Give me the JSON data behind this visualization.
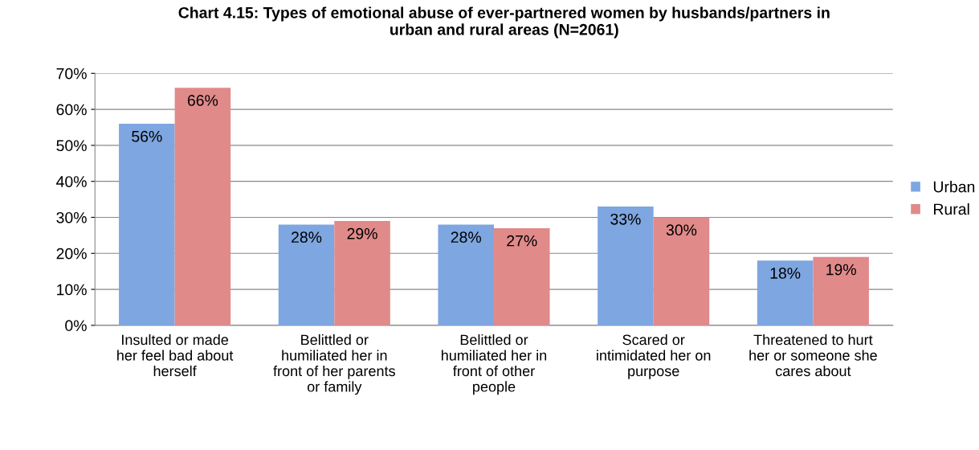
{
  "chart_data": {
    "type": "bar",
    "title": "Chart 4.15: Types of emotional abuse of ever-partnered women by husbands/partners in\nurban and rural areas (N=2061)",
    "categories": [
      "Insulted or made\nher feel bad about\nherself",
      "Belittled or\nhumiliated her in\nfront of her parents\nor family",
      "Belittled or\nhumiliated her in\nfront of other\npeople",
      "Scared or\nintimidated her on\npurpose",
      "Threatened to hurt\nher or someone she\ncares about"
    ],
    "series": [
      {
        "name": "Urban",
        "color": "#7ea6e0",
        "values": [
          56,
          28,
          28,
          33,
          18
        ],
        "value_labels": [
          "56%",
          "28%",
          "28%",
          "33%",
          "18%"
        ]
      },
      {
        "name": "Rural",
        "color": "#e08a8a",
        "values": [
          66,
          29,
          27,
          30,
          19
        ],
        "value_labels": [
          "66%",
          "29%",
          "27%",
          "30%",
          "19%"
        ]
      }
    ],
    "ylim": [
      0,
      70
    ],
    "yticks": [
      {
        "value": 0,
        "label": "0%"
      },
      {
        "value": 10,
        "label": "10%"
      },
      {
        "value": 20,
        "label": "20%"
      },
      {
        "value": 30,
        "label": "30%"
      },
      {
        "value": 40,
        "label": "40%"
      },
      {
        "value": 50,
        "label": "50%"
      },
      {
        "value": 60,
        "label": "60%"
      },
      {
        "value": 70,
        "label": "70%"
      }
    ],
    "grid": "y",
    "legend": "right"
  }
}
